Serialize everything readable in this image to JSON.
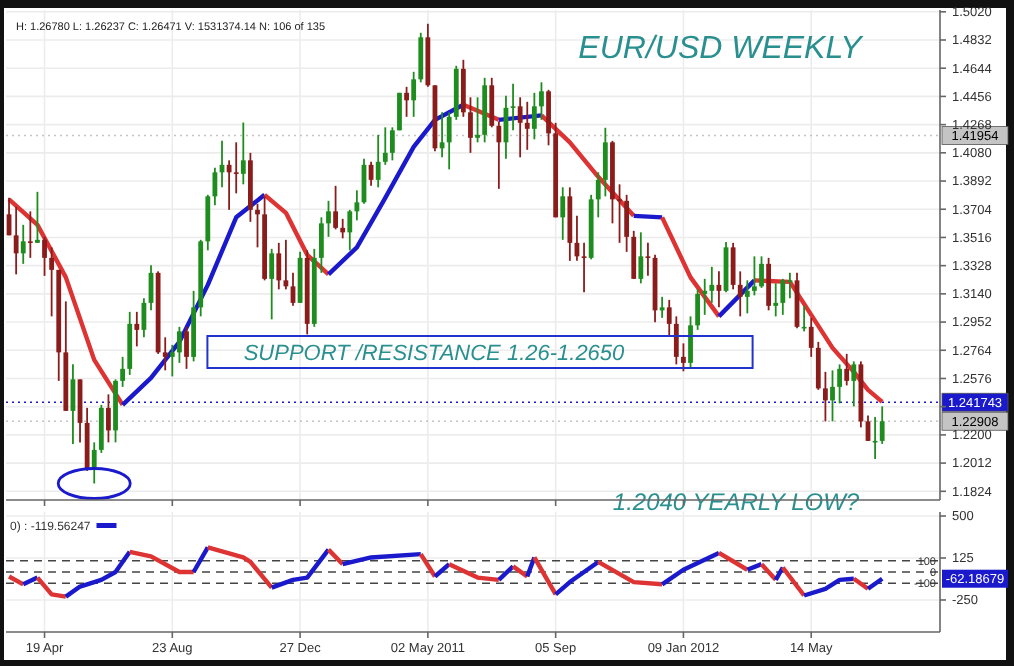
{
  "chart_data": [
    {
      "type": "candlestick",
      "title": "EUR/USD WEEKLY",
      "x": [
        "2010-03-15",
        "2010-03-22",
        "2010-03-29",
        "2010-04-05",
        "2010-04-12",
        "2010-04-19",
        "2010-04-26",
        "2010-05-03",
        "2010-05-10",
        "2010-05-17",
        "2010-05-24",
        "2010-05-31",
        "2010-06-07",
        "2010-06-14",
        "2010-06-21",
        "2010-06-28",
        "2010-07-05",
        "2010-07-12",
        "2010-07-19",
        "2010-07-26",
        "2010-08-02",
        "2010-08-09",
        "2010-08-16",
        "2010-08-23",
        "2010-08-30",
        "2010-09-06",
        "2010-09-13",
        "2010-09-20",
        "2010-09-27",
        "2010-10-04",
        "2010-10-11",
        "2010-10-18",
        "2010-10-25",
        "2010-11-01",
        "2010-11-08",
        "2010-11-15",
        "2010-11-22",
        "2010-11-29",
        "2010-12-06",
        "2010-12-13",
        "2010-12-20",
        "2010-12-27",
        "2011-01-03",
        "2011-01-10",
        "2011-01-17",
        "2011-01-24",
        "2011-01-31",
        "2011-02-07",
        "2011-02-14",
        "2011-02-21",
        "2011-02-28",
        "2011-03-07",
        "2011-03-14",
        "2011-03-21",
        "2011-03-28",
        "2011-04-04",
        "2011-04-11",
        "2011-04-18",
        "2011-04-25",
        "2011-05-02",
        "2011-05-09",
        "2011-05-16",
        "2011-05-23",
        "2011-05-30",
        "2011-06-06",
        "2011-06-13",
        "2011-06-20",
        "2011-06-27",
        "2011-07-04",
        "2011-07-11",
        "2011-07-18",
        "2011-07-25",
        "2011-08-01",
        "2011-08-08",
        "2011-08-15",
        "2011-08-22",
        "2011-08-29",
        "2011-09-05",
        "2011-09-12",
        "2011-09-19",
        "2011-09-26",
        "2011-10-03",
        "2011-10-10",
        "2011-10-17",
        "2011-10-24",
        "2011-10-31",
        "2011-11-07",
        "2011-11-14",
        "2011-11-21",
        "2011-11-28",
        "2011-12-05",
        "2011-12-12",
        "2011-12-19",
        "2011-12-26",
        "2012-01-02",
        "2012-01-09",
        "2012-01-16",
        "2012-01-23",
        "2012-01-30",
        "2012-02-06",
        "2012-02-13",
        "2012-02-20",
        "2012-02-27",
        "2012-03-05",
        "2012-03-12",
        "2012-03-19",
        "2012-03-26",
        "2012-04-02",
        "2012-04-09",
        "2012-04-16",
        "2012-04-23",
        "2012-04-30",
        "2012-05-07",
        "2012-05-14",
        "2012-05-21",
        "2012-05-28",
        "2012-06-04",
        "2012-06-11",
        "2012-06-18",
        "2012-06-25",
        "2012-07-02",
        "2012-07-09",
        "2012-07-16",
        "2012-07-23"
      ],
      "ohlc": [
        [
          1.367,
          1.378,
          1.353,
          1.353
        ],
        [
          1.353,
          1.372,
          1.327,
          1.341
        ],
        [
          1.341,
          1.36,
          1.334,
          1.349
        ],
        [
          1.349,
          1.369,
          1.338,
          1.348
        ],
        [
          1.348,
          1.382,
          1.348,
          1.35
        ],
        [
          1.35,
          1.352,
          1.326,
          1.338
        ],
        [
          1.338,
          1.345,
          1.299,
          1.33
        ],
        [
          1.33,
          1.33,
          1.256,
          1.275
        ],
        [
          1.275,
          1.309,
          1.236,
          1.236
        ],
        [
          1.236,
          1.267,
          1.214,
          1.257
        ],
        [
          1.257,
          1.257,
          1.215,
          1.228
        ],
        [
          1.228,
          1.238,
          1.196,
          1.197
        ],
        [
          1.197,
          1.215,
          1.1876,
          1.21
        ],
        [
          1.21,
          1.24,
          1.208,
          1.238
        ],
        [
          1.238,
          1.247,
          1.215,
          1.223
        ],
        [
          1.223,
          1.257,
          1.215,
          1.256
        ],
        [
          1.256,
          1.272,
          1.252,
          1.264
        ],
        [
          1.264,
          1.302,
          1.26,
          1.294
        ],
        [
          1.294,
          1.302,
          1.279,
          1.29
        ],
        [
          1.29,
          1.311,
          1.285,
          1.308
        ],
        [
          1.308,
          1.333,
          1.303,
          1.328
        ],
        [
          1.328,
          1.329,
          1.274,
          1.275
        ],
        [
          1.275,
          1.285,
          1.263,
          1.272
        ],
        [
          1.272,
          1.28,
          1.259,
          1.275
        ],
        [
          1.275,
          1.292,
          1.268,
          1.289
        ],
        [
          1.289,
          1.292,
          1.264,
          1.272
        ],
        [
          1.272,
          1.316,
          1.269,
          1.305
        ],
        [
          1.305,
          1.35,
          1.299,
          1.349
        ],
        [
          1.349,
          1.38,
          1.343,
          1.379
        ],
        [
          1.379,
          1.398,
          1.373,
          1.395
        ],
        [
          1.395,
          1.416,
          1.385,
          1.4
        ],
        [
          1.4,
          1.403,
          1.37,
          1.395
        ],
        [
          1.395,
          1.415,
          1.381,
          1.394
        ],
        [
          1.394,
          1.4282,
          1.387,
          1.403
        ],
        [
          1.403,
          1.408,
          1.362,
          1.37
        ],
        [
          1.37,
          1.374,
          1.345,
          1.367
        ],
        [
          1.367,
          1.379,
          1.323,
          1.324
        ],
        [
          1.324,
          1.344,
          1.297,
          1.341
        ],
        [
          1.341,
          1.348,
          1.317,
          1.323
        ],
        [
          1.323,
          1.35,
          1.317,
          1.319
        ],
        [
          1.319,
          1.328,
          1.306,
          1.308
        ],
        [
          1.308,
          1.342,
          1.308,
          1.338
        ],
        [
          1.338,
          1.343,
          1.287,
          1.294
        ],
        [
          1.294,
          1.344,
          1.292,
          1.338
        ],
        [
          1.338,
          1.365,
          1.328,
          1.361
        ],
        [
          1.361,
          1.376,
          1.352,
          1.369
        ],
        [
          1.369,
          1.386,
          1.357,
          1.358
        ],
        [
          1.358,
          1.364,
          1.351,
          1.355
        ],
        [
          1.355,
          1.37,
          1.343,
          1.369
        ],
        [
          1.369,
          1.383,
          1.363,
          1.375
        ],
        [
          1.375,
          1.404,
          1.374,
          1.4
        ],
        [
          1.4,
          1.402,
          1.386,
          1.39
        ],
        [
          1.39,
          1.42,
          1.385,
          1.402
        ],
        [
          1.402,
          1.425,
          1.4,
          1.408
        ],
        [
          1.408,
          1.425,
          1.403,
          1.423
        ],
        [
          1.423,
          1.448,
          1.423,
          1.448
        ],
        [
          1.448,
          1.452,
          1.432,
          1.443
        ],
        [
          1.443,
          1.462,
          1.432,
          1.457
        ],
        [
          1.457,
          1.488,
          1.455,
          1.485
        ],
        [
          1.485,
          1.494,
          1.452,
          1.453
        ],
        [
          1.453,
          1.453,
          1.409,
          1.411
        ],
        [
          1.411,
          1.435,
          1.405,
          1.415
        ],
        [
          1.415,
          1.435,
          1.397,
          1.432
        ],
        [
          1.432,
          1.466,
          1.43,
          1.464
        ],
        [
          1.464,
          1.47,
          1.432,
          1.435
        ],
        [
          1.435,
          1.445,
          1.408,
          1.418
        ],
        [
          1.418,
          1.445,
          1.415,
          1.42
        ],
        [
          1.42,
          1.458,
          1.415,
          1.453
        ],
        [
          1.453,
          1.458,
          1.425,
          1.426
        ],
        [
          1.426,
          1.429,
          1.384,
          1.415
        ],
        [
          1.415,
          1.446,
          1.404,
          1.438
        ],
        [
          1.438,
          1.454,
          1.423,
          1.439
        ],
        [
          1.439,
          1.445,
          1.405,
          1.428
        ],
        [
          1.428,
          1.442,
          1.41,
          1.424
        ],
        [
          1.424,
          1.448,
          1.417,
          1.439
        ],
        [
          1.439,
          1.455,
          1.43,
          1.449
        ],
        [
          1.449,
          1.45,
          1.413,
          1.421
        ],
        [
          1.421,
          1.428,
          1.365,
          1.365
        ],
        [
          1.365,
          1.385,
          1.35,
          1.379
        ],
        [
          1.379,
          1.385,
          1.336,
          1.348
        ],
        [
          1.348,
          1.366,
          1.336,
          1.339
        ],
        [
          1.339,
          1.348,
          1.315,
          1.338
        ],
        [
          1.338,
          1.38,
          1.337,
          1.377
        ],
        [
          1.377,
          1.395,
          1.365,
          1.39
        ],
        [
          1.39,
          1.4247,
          1.379,
          1.415
        ],
        [
          1.415,
          1.416,
          1.361,
          1.377
        ],
        [
          1.377,
          1.387,
          1.348,
          1.376
        ],
        [
          1.376,
          1.38,
          1.342,
          1.352
        ],
        [
          1.352,
          1.356,
          1.324,
          1.324
        ],
        [
          1.324,
          1.355,
          1.321,
          1.339
        ],
        [
          1.339,
          1.348,
          1.326,
          1.338
        ],
        [
          1.338,
          1.34,
          1.295,
          1.303
        ],
        [
          1.303,
          1.312,
          1.298,
          1.305
        ],
        [
          1.305,
          1.31,
          1.286,
          1.294
        ],
        [
          1.294,
          1.299,
          1.267,
          1.272
        ],
        [
          1.272,
          1.281,
          1.2624,
          1.268
        ],
        [
          1.268,
          1.299,
          1.265,
          1.293
        ],
        [
          1.293,
          1.317,
          1.29,
          1.314
        ],
        [
          1.314,
          1.324,
          1.3,
          1.316
        ],
        [
          1.316,
          1.332,
          1.308,
          1.32
        ],
        [
          1.32,
          1.329,
          1.305,
          1.316
        ],
        [
          1.316,
          1.3486,
          1.315,
          1.345
        ],
        [
          1.345,
          1.348,
          1.317,
          1.32
        ],
        [
          1.32,
          1.329,
          1.299,
          1.312
        ],
        [
          1.312,
          1.323,
          1.301,
          1.316
        ],
        [
          1.316,
          1.339,
          1.313,
          1.319
        ],
        [
          1.319,
          1.339,
          1.318,
          1.334
        ],
        [
          1.334,
          1.338,
          1.303,
          1.306
        ],
        [
          1.306,
          1.321,
          1.299,
          1.308
        ],
        [
          1.308,
          1.324,
          1.3,
          1.323
        ],
        [
          1.323,
          1.328,
          1.311,
          1.323
        ],
        [
          1.323,
          1.328,
          1.291,
          1.292
        ],
        [
          1.292,
          1.306,
          1.289,
          1.292
        ],
        [
          1.292,
          1.298,
          1.272,
          1.278
        ],
        [
          1.278,
          1.282,
          1.25,
          1.251
        ],
        [
          1.251,
          1.262,
          1.229,
          1.243
        ],
        [
          1.243,
          1.263,
          1.229,
          1.252
        ],
        [
          1.252,
          1.267,
          1.241,
          1.264
        ],
        [
          1.264,
          1.274,
          1.253,
          1.256
        ],
        [
          1.256,
          1.269,
          1.239,
          1.267
        ],
        [
          1.267,
          1.269,
          1.225,
          1.229
        ],
        [
          1.229,
          1.233,
          1.216,
          1.216
        ],
        [
          1.216,
          1.232,
          1.204,
          1.216
        ],
        [
          1.216,
          1.239,
          1.214,
          1.2291
        ]
      ],
      "series": [
        {
          "type": "line",
          "color": "#dd3333",
          "x": [
            "2010-03-15",
            "2010-04-12",
            "2010-05-10",
            "2010-06-07",
            "2010-07-05"
          ],
          "values": [
            1.377,
            1.36,
            1.325,
            1.27,
            1.24
          ]
        },
        {
          "type": "line",
          "color": "#1a1acc",
          "x": [
            "2010-07-05",
            "2010-08-02",
            "2010-08-30",
            "2010-09-27",
            "2010-10-25",
            "2010-11-22"
          ],
          "values": [
            1.24,
            1.258,
            1.282,
            1.32,
            1.365,
            1.38
          ]
        },
        {
          "type": "line",
          "color": "#dd3333",
          "x": [
            "2010-11-22",
            "2010-12-13",
            "2011-01-03",
            "2011-01-24"
          ],
          "values": [
            1.38,
            1.368,
            1.34,
            1.327
          ]
        },
        {
          "type": "line",
          "color": "#1a1acc",
          "x": [
            "2011-01-24",
            "2011-02-21",
            "2011-03-21",
            "2011-04-18",
            "2011-05-09",
            "2011-06-06"
          ],
          "values": [
            1.327,
            1.345,
            1.378,
            1.412,
            1.43,
            1.44
          ]
        },
        {
          "type": "line",
          "color": "#dd3333",
          "x": [
            "2011-06-06",
            "2011-07-11"
          ],
          "values": [
            1.44,
            1.43
          ]
        },
        {
          "type": "line",
          "color": "#1a1acc",
          "x": [
            "2011-07-11",
            "2011-08-22"
          ],
          "values": [
            1.43,
            1.433
          ]
        },
        {
          "type": "line",
          "color": "#dd3333",
          "x": [
            "2011-08-22",
            "2011-09-19",
            "2011-10-17",
            "2011-11-21"
          ],
          "values": [
            1.433,
            1.415,
            1.392,
            1.366
          ]
        },
        {
          "type": "line",
          "color": "#1a1acc",
          "x": [
            "2011-11-21",
            "2011-12-19"
          ],
          "values": [
            1.366,
            1.365
          ]
        },
        {
          "type": "line",
          "color": "#dd3333",
          "x": [
            "2011-12-19",
            "2012-01-16",
            "2012-02-13"
          ],
          "values": [
            1.365,
            1.325,
            1.299
          ]
        },
        {
          "type": "line",
          "color": "#1a1acc",
          "x": [
            "2012-02-13",
            "2012-03-19"
          ],
          "values": [
            1.299,
            1.323
          ]
        },
        {
          "type": "line",
          "color": "#dd3333",
          "x": [
            "2012-03-19",
            "2012-04-23",
            "2012-05-14",
            "2012-06-04",
            "2012-06-25",
            "2012-07-09",
            "2012-07-23"
          ],
          "values": [
            1.323,
            1.322,
            1.3,
            1.278,
            1.262,
            1.25,
            1.242
          ]
        }
      ],
      "xlim": [
        "2010-03-12",
        "2012-09-18"
      ],
      "xticks": [
        {
          "value": "2010-04-19",
          "label": null
        },
        {
          "value": "2010-08-23",
          "label": null
        },
        {
          "value": "2010-12-27",
          "label": null
        },
        {
          "value": "2011-05-02",
          "label": null
        },
        {
          "value": "2011-09-05",
          "label": null
        },
        {
          "value": "2012-01-09",
          "label": null
        },
        {
          "value": "2012-05-14",
          "label": null
        }
      ],
      "ylim": [
        1.1766,
        1.5032
      ],
      "yticks": [
        1.1824,
        1.2012,
        {
          "value": 1.22,
          "label": "1.2200"
        },
        {
          "value": 1.2388,
          "label": null
        },
        1.2576,
        1.2764,
        1.2952,
        {
          "value": 1.314,
          "label": "1.3140"
        },
        1.3328,
        1.3516,
        1.3704,
        1.3892,
        {
          "value": 1.408,
          "label": "1.4080"
        },
        1.4268,
        1.4456,
        1.4644,
        1.4832,
        {
          "value": 1.502,
          "label": "1.5020"
        }
      ],
      "tick_labels": "y",
      "grid": true,
      "ref_lines": [
        {
          "axis": "y",
          "value": 1.241743,
          "label": "1.241743",
          "color": "#1a1acc",
          "line_style": "dotted"
        },
        {
          "axis": "y",
          "value": 1.22908,
          "label": "1.22908",
          "color": "#c4c4c4",
          "line_style": "dotted"
        },
        {
          "axis": "y",
          "value": 1.41954,
          "label": "1.41954",
          "color": "#c4c4c4",
          "line_style": "dotted"
        }
      ],
      "annotations": [
        "H: 1.26780  L: 1.26237  C: 1.26471  V: 1531374.14  N: 106 of 135",
        "SUPPORT /RESISTANCE 1.26-1.2650",
        "1.2040 YEARLY LOW?"
      ]
    },
    {
      "type": "line",
      "legend": "top left",
      "grid": true,
      "series": [
        {
          "color": "#dd3333",
          "x": [
            "2010-03-15",
            "2010-03-29"
          ],
          "values": [
            -40,
            -110
          ]
        },
        {
          "name": "0) : -119.56247",
          "color": "#1a1acc",
          "x": [
            "2010-03-29",
            "2010-04-12"
          ],
          "values": [
            -110,
            -50
          ]
        },
        {
          "color": "#dd3333",
          "x": [
            "2010-04-12",
            "2010-04-26",
            "2010-05-10"
          ],
          "values": [
            -50,
            -200,
            -220
          ]
        },
        {
          "color": "#1a1acc",
          "x": [
            "2010-05-10",
            "2010-05-24",
            "2010-06-14",
            "2010-06-28",
            "2010-07-12"
          ],
          "values": [
            -220,
            -130,
            -70,
            0,
            180
          ]
        },
        {
          "color": "#dd3333",
          "x": [
            "2010-07-12",
            "2010-08-02",
            "2010-08-30",
            "2010-09-13"
          ],
          "values": [
            180,
            140,
            0,
            0
          ]
        },
        {
          "color": "#1a1acc",
          "x": [
            "2010-09-13",
            "2010-09-27"
          ],
          "values": [
            0,
            220
          ]
        },
        {
          "color": "#dd3333",
          "x": [
            "2010-09-27",
            "2010-11-01",
            "2010-11-08",
            "2010-11-29"
          ],
          "values": [
            220,
            130,
            90,
            -140
          ]
        },
        {
          "color": "#1a1acc",
          "x": [
            "2010-11-29",
            "2010-12-20",
            "2011-01-03",
            "2011-01-24"
          ],
          "values": [
            -140,
            -70,
            -50,
            200
          ]
        },
        {
          "color": "#dd3333",
          "x": [
            "2011-01-24",
            "2011-02-07"
          ],
          "values": [
            200,
            70
          ]
        },
        {
          "color": "#1a1acc",
          "x": [
            "2011-02-07",
            "2011-03-07",
            "2011-04-25"
          ],
          "values": [
            70,
            130,
            160
          ]
        },
        {
          "color": "#dd3333",
          "x": [
            "2011-04-25",
            "2011-05-09"
          ],
          "values": [
            160,
            -40
          ]
        },
        {
          "color": "#1a1acc",
          "x": [
            "2011-05-09",
            "2011-05-23"
          ],
          "values": [
            -40,
            70
          ]
        },
        {
          "color": "#dd3333",
          "x": [
            "2011-05-23",
            "2011-06-20",
            "2011-07-11"
          ],
          "values": [
            70,
            -50,
            -70
          ]
        },
        {
          "color": "#1a1acc",
          "x": [
            "2011-07-11",
            "2011-07-25"
          ],
          "values": [
            -70,
            50
          ]
        },
        {
          "color": "#dd3333",
          "x": [
            "2011-07-25",
            "2011-08-08"
          ],
          "values": [
            50,
            -40
          ]
        },
        {
          "color": "#1a1acc",
          "x": [
            "2011-08-08",
            "2011-08-15"
          ],
          "values": [
            -40,
            130
          ]
        },
        {
          "color": "#dd3333",
          "x": [
            "2011-08-15",
            "2011-09-05"
          ],
          "values": [
            130,
            -200
          ]
        },
        {
          "color": "#1a1acc",
          "x": [
            "2011-09-05",
            "2011-09-19",
            "2011-10-17"
          ],
          "values": [
            -200,
            -90,
            90
          ]
        },
        {
          "color": "#dd3333",
          "x": [
            "2011-10-17",
            "2011-11-21",
            "2011-12-19"
          ],
          "values": [
            90,
            -90,
            -110
          ]
        },
        {
          "color": "#1a1acc",
          "x": [
            "2011-12-19",
            "2012-01-09",
            "2012-02-13"
          ],
          "values": [
            -110,
            20,
            170
          ]
        },
        {
          "color": "#dd3333",
          "x": [
            "2012-02-13",
            "2012-03-12"
          ],
          "values": [
            170,
            20
          ]
        },
        {
          "color": "#1a1acc",
          "x": [
            "2012-03-12",
            "2012-03-26"
          ],
          "values": [
            20,
            70
          ]
        },
        {
          "color": "#dd3333",
          "x": [
            "2012-03-26",
            "2012-04-09"
          ],
          "values": [
            70,
            -70
          ]
        },
        {
          "color": "#1a1acc",
          "x": [
            "2012-04-09",
            "2012-04-16"
          ],
          "values": [
            -70,
            40
          ]
        },
        {
          "color": "#dd3333",
          "x": [
            "2012-04-16",
            "2012-05-07"
          ],
          "values": [
            40,
            -210
          ]
        },
        {
          "color": "#1a1acc",
          "x": [
            "2012-05-07",
            "2012-05-28",
            "2012-06-11",
            "2012-06-25"
          ],
          "values": [
            -210,
            -150,
            -70,
            -60
          ]
        },
        {
          "color": "#dd3333",
          "x": [
            "2012-06-25",
            "2012-07-09"
          ],
          "values": [
            -60,
            -150
          ]
        },
        {
          "color": "#1a1acc",
          "x": [
            "2012-07-09",
            "2012-07-23"
          ],
          "values": [
            -150,
            -60
          ]
        }
      ],
      "xlim": [
        "2010-03-12",
        "2012-09-18"
      ],
      "xticks": [
        {
          "value": "2010-04-19",
          "label": "19 Apr"
        },
        {
          "value": "2010-08-23",
          "label": "23 Aug"
        },
        {
          "value": "2010-12-27",
          "label": "27 Dec"
        },
        {
          "value": "2011-05-02",
          "label": "02 May 2011"
        },
        {
          "value": "2011-09-05",
          "label": "05 Sep"
        },
        {
          "value": "2012-01-09",
          "label": "09 Jan 2012"
        },
        {
          "value": "2012-05-14",
          "label": "14 May"
        }
      ],
      "ylim": [
        -536,
        536
      ],
      "yticks": [
        500,
        125,
        -250
      ],
      "ref_lines": [
        {
          "axis": "y",
          "value": 100,
          "label": "100",
          "color": "#444444",
          "line_style": "dashed"
        },
        {
          "axis": "y",
          "value": 0,
          "label": "0",
          "color": "#444444",
          "line_style": "dashed"
        },
        {
          "axis": "y",
          "value": -100,
          "label": "-100",
          "color": "#444444",
          "line_style": "dashed"
        }
      ],
      "annotations": [
        "-62.18679"
      ]
    }
  ]
}
